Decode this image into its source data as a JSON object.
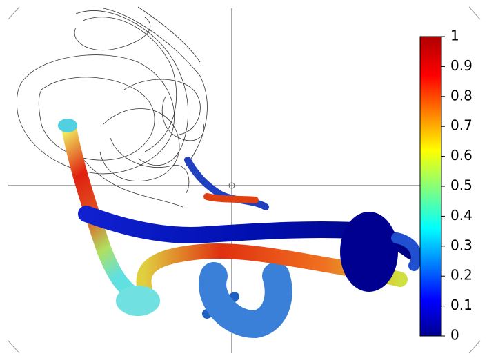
{
  "colorbar": {
    "lim": [
      0,
      1
    ],
    "ticks": [
      0,
      0.1,
      0.2,
      0.3,
      0.4,
      0.5,
      0.6,
      0.7,
      0.8,
      0.9,
      1
    ]
  }
}
